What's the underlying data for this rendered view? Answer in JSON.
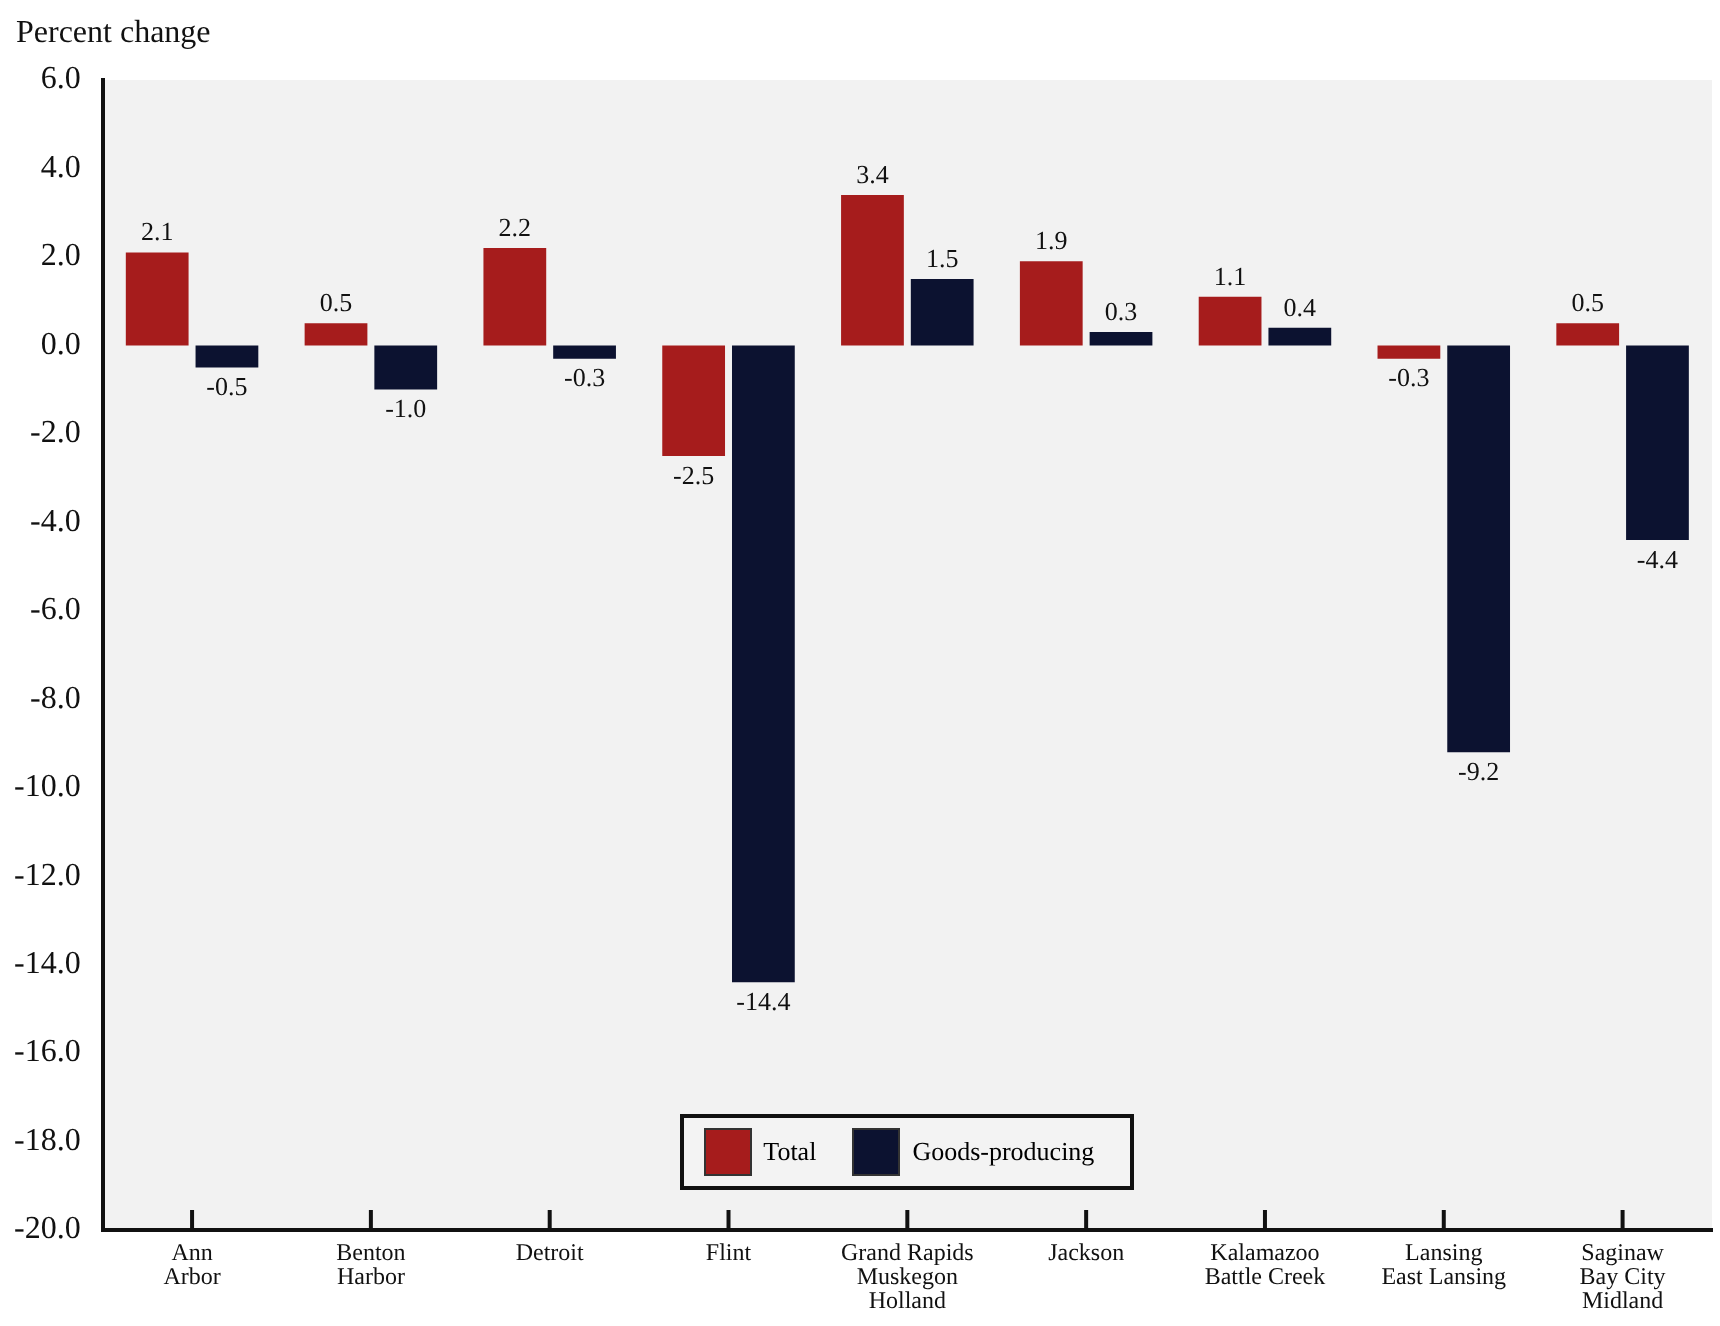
{
  "chart_data": {
    "type": "bar",
    "ylabel": "Percent change",
    "categories": [
      "Ann\nArbor",
      "Benton\nHarbor",
      "Detroit",
      "Flint",
      "Grand Rapids\nMuskegon\nHolland",
      "Jackson",
      "Kalamazoo\nBattle Creek",
      "Lansing\nEast Lansing",
      "Saginaw\nBay City\nMidland"
    ],
    "series": [
      {
        "name": "Total",
        "color": "#a61c1c",
        "values": [
          2.1,
          0.5,
          2.2,
          -2.5,
          3.4,
          1.9,
          1.1,
          -0.3,
          0.5
        ],
        "value_labels": [
          "2.1",
          "0.5",
          "2.2",
          "-2.5",
          "3.4",
          "1.9",
          "1.1",
          "-0.3",
          "0.5"
        ]
      },
      {
        "name": "Goods-producing",
        "color": "#0c1230",
        "values": [
          -0.5,
          -1.0,
          -0.3,
          -14.4,
          1.5,
          0.3,
          0.4,
          -9.2,
          -4.4
        ],
        "value_labels": [
          "-0.5",
          "-1.0",
          "-0.3",
          "-14.4",
          "1.5",
          "0.3",
          "0.4",
          "-9.2",
          "-4.4"
        ]
      }
    ],
    "ylim": [
      -20,
      6
    ],
    "yticks": [
      {
        "value": -20,
        "label": "-20.0"
      },
      {
        "value": -18,
        "label": "-18.0"
      },
      {
        "value": -16,
        "label": "-16.0"
      },
      {
        "value": -14,
        "label": "-14.0"
      },
      {
        "value": -12,
        "label": "-12.0"
      },
      {
        "value": -10,
        "label": "-10.0"
      },
      {
        "value": -8,
        "label": "-8.0"
      },
      {
        "value": -6,
        "label": "-6.0"
      },
      {
        "value": -4,
        "label": "-4.0"
      },
      {
        "value": -2,
        "label": "-2.0"
      },
      {
        "value": 0,
        "label": "0.0"
      },
      {
        "value": 2,
        "label": "2.0"
      },
      {
        "value": 4,
        "label": "4.0"
      },
      {
        "value": 6,
        "label": "6.0"
      }
    ],
    "grid": false,
    "legend": "bottom"
  }
}
